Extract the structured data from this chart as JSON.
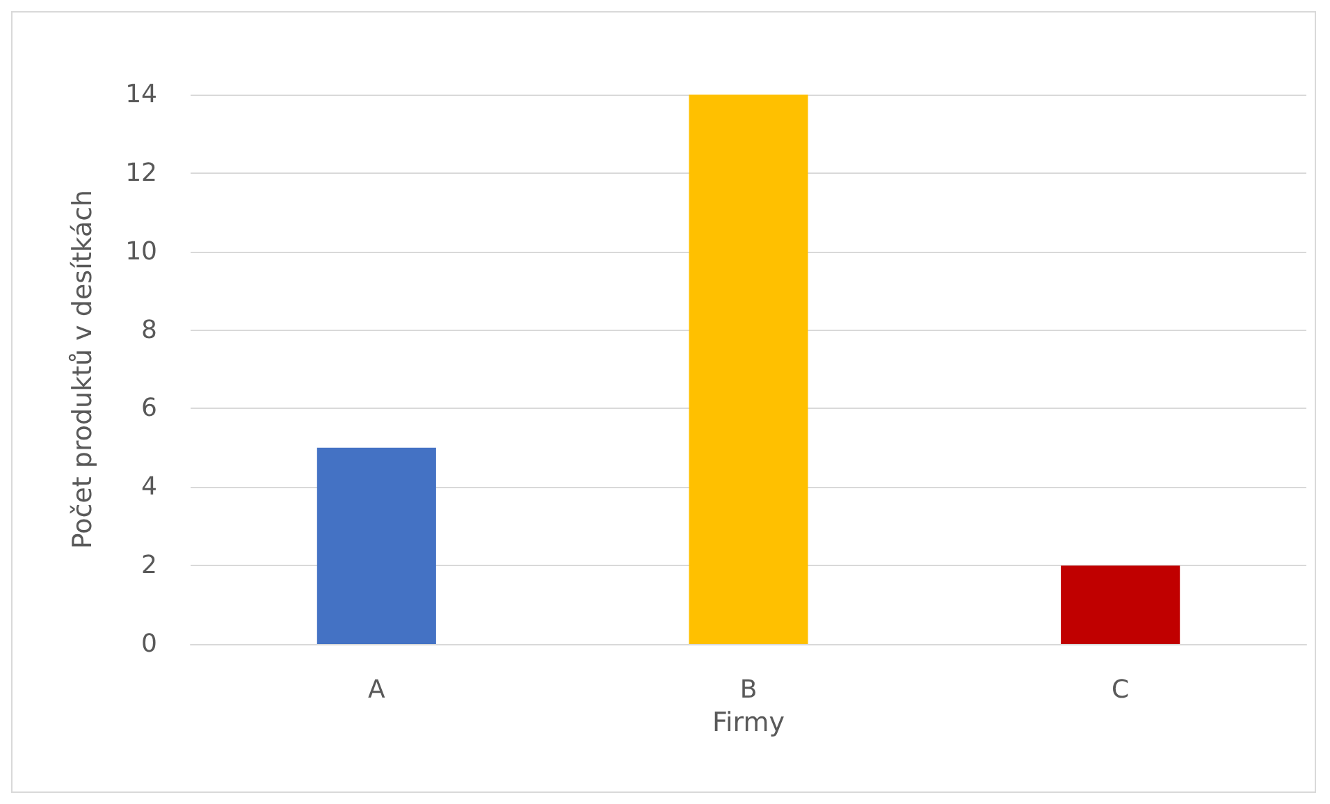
{
  "chart_data": {
    "type": "bar",
    "xlabel": "Firmy",
    "ylabel": "Počet produktů v desítkách",
    "categories": [
      "A",
      "B",
      "C"
    ],
    "values": [
      5,
      14,
      2
    ],
    "colors": [
      "#4472c4",
      "#ffc000",
      "#c00000"
    ],
    "ylim": [
      0,
      14
    ],
    "yticks": [
      0,
      2,
      4,
      6,
      8,
      10,
      12,
      14
    ],
    "grid": "y"
  }
}
